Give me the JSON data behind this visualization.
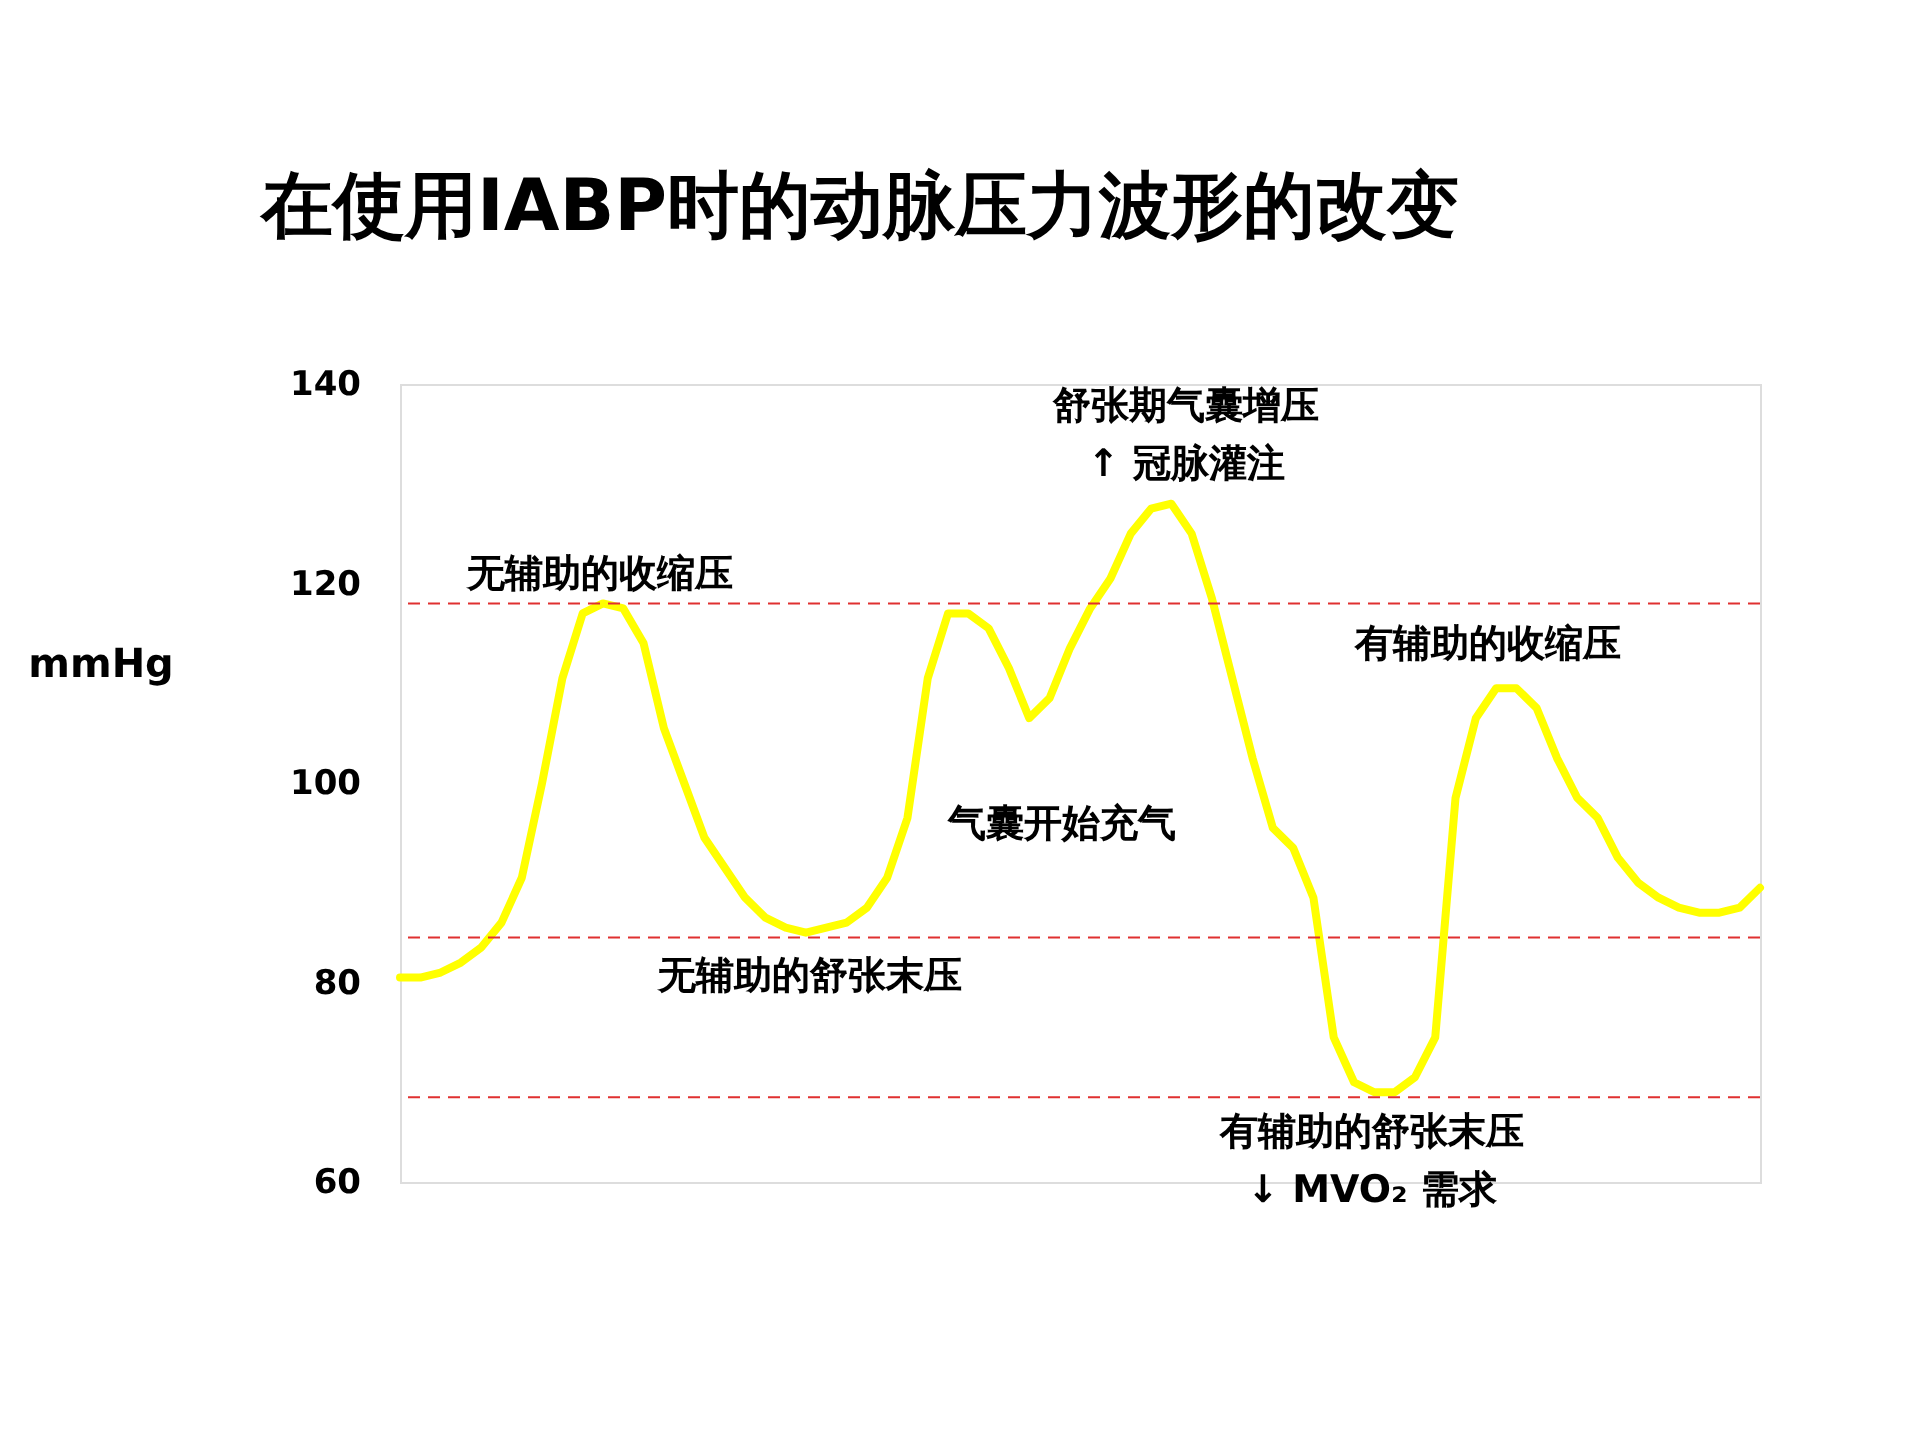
{
  "chart_data": {
    "type": "line",
    "title": "在使用IABP时的动脉压力波形的改变",
    "ylabel": "mmHg",
    "categories": [
      null,
      null,
      null,
      null,
      null,
      null,
      null,
      null,
      null,
      null,
      null,
      null,
      null,
      null,
      null,
      null,
      null,
      null,
      null,
      null,
      null,
      null,
      null,
      null,
      null,
      null,
      null,
      null,
      null,
      null,
      null,
      null,
      null,
      null,
      null,
      null,
      null,
      null,
      null,
      null,
      null,
      null,
      null,
      null,
      null,
      null,
      null,
      null,
      null,
      null,
      null,
      null,
      null,
      null,
      null,
      null,
      null,
      null,
      null,
      null,
      null,
      null,
      null,
      null,
      null,
      null,
      null,
      null
    ],
    "series": [
      {
        "color": "#ffff00",
        "values": [
          80.5,
          80.5,
          81,
          82,
          83.5,
          86,
          90.5,
          100,
          110.5,
          117,
          118,
          117.5,
          114,
          105.5,
          100,
          94.5,
          91.5,
          88.5,
          86.5,
          85.5,
          85,
          85.5,
          86,
          87.5,
          90.5,
          96.5,
          110.5,
          117,
          117,
          115.5,
          111.5,
          106.5,
          108.5,
          113.5,
          117.5,
          120.5,
          125,
          127.5,
          128,
          125,
          118.5,
          110.5,
          102.5,
          95.5,
          93.5,
          88.5,
          74.5,
          70,
          69,
          69,
          70.5,
          74.5,
          98.5,
          106.5,
          109.5,
          109.5,
          107.5,
          102.5,
          98.5,
          96.5,
          92.5,
          90,
          88.5,
          87.5,
          87,
          87,
          87.5,
          89.5
        ]
      }
    ],
    "ylim": [
      60,
      140
    ],
    "yticks": [
      60,
      80,
      100,
      120,
      140
    ],
    "tick_labels": "y",
    "marker": "none",
    "line_style": "solid",
    "ref_lines": [
      {
        "axis": "y",
        "value": 118,
        "color": "#e03030",
        "line_style": "dashed"
      },
      {
        "axis": "y",
        "value": 84.5,
        "color": "#e03030",
        "line_style": "dashed"
      },
      {
        "axis": "y",
        "value": 68.5,
        "color": "#e03030",
        "line_style": "dashed"
      }
    ],
    "annotations": [
      "无辅助的收缩压",
      "无辅助的舒张末压",
      "气囊开始充气",
      "舒张期气囊增压\n↑ 冠脉灌注",
      "有辅助的收缩压",
      "有辅助的舒张末压\n↓ MVO₂ 需求"
    ]
  }
}
